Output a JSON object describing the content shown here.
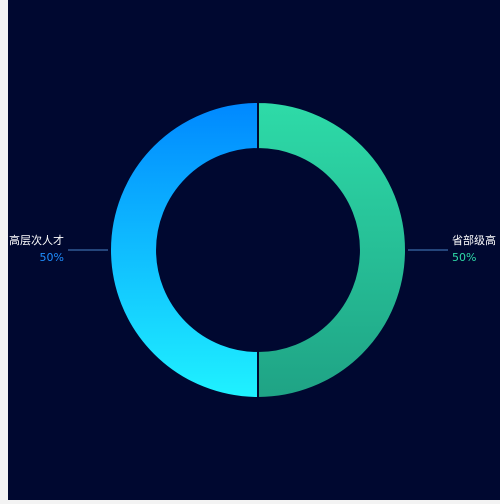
{
  "chart_data": {
    "type": "pie",
    "categories": [
      "省部级高",
      "高层次人才"
    ],
    "values": [
      50,
      50
    ],
    "value_labels": [
      "50%",
      "50%"
    ],
    "colors": [
      [
        "#2edba8",
        "#1fa385"
      ],
      [
        "#0088ff",
        "#1ff2ff"
      ]
    ],
    "label_colors": [
      "#2edba8",
      "#1f8fff"
    ],
    "background": "#000830"
  }
}
